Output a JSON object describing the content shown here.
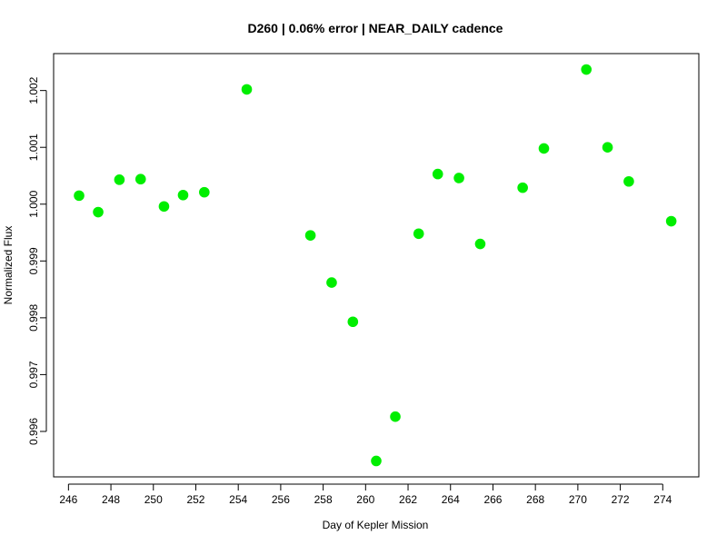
{
  "chart_data": {
    "type": "scatter",
    "title": "D260 | 0.06% error | NEAR_DAILY cadence",
    "xlabel": "Day of Kepler Mission",
    "ylabel": "Normalized Flux",
    "xlim": [
      245.3,
      275.7
    ],
    "ylim": [
      0.9952,
      1.00265
    ],
    "xticks": [
      246,
      248,
      250,
      252,
      254,
      256,
      258,
      260,
      262,
      264,
      266,
      268,
      270,
      272,
      274
    ],
    "yticks": [
      0.996,
      0.997,
      0.998,
      0.999,
      1.0,
      1.001,
      1.002
    ],
    "ytick_labels": [
      "0.996",
      "0.997",
      "0.998",
      "0.999",
      "1.000",
      "1.001",
      "1.002"
    ],
    "grid": false,
    "point_color": "#00ee00",
    "series": [
      {
        "x": [
          246.5,
          247.4,
          248.4,
          249.4,
          250.5,
          251.4,
          252.4,
          254.4,
          257.4,
          258.4,
          259.4,
          260.5,
          261.4,
          262.5,
          263.4,
          264.4,
          265.4,
          267.4,
          268.4,
          270.4,
          271.4,
          272.4,
          274.4
        ],
        "y": [
          1.00015,
          0.99986,
          1.00043,
          1.00044,
          0.99996,
          1.00016,
          1.00021,
          1.00202,
          0.99945,
          0.99862,
          0.99793,
          0.99548,
          0.99626,
          0.99948,
          1.00053,
          1.00046,
          0.9993,
          1.00029,
          1.00098,
          1.00237,
          1.001,
          1.0004,
          0.9997
        ]
      }
    ]
  }
}
